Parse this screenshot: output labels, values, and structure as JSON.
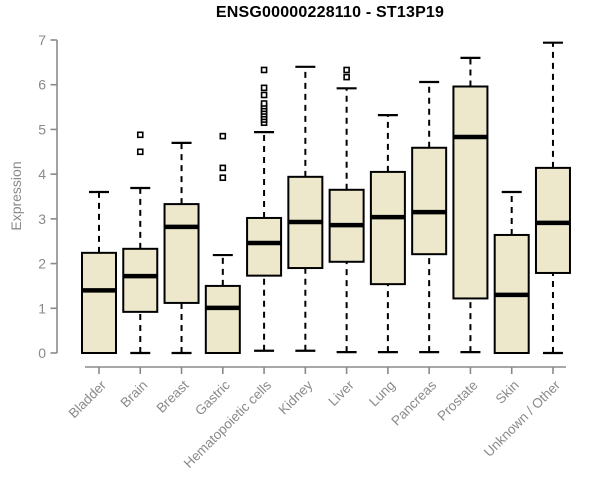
{
  "colors": {
    "box_fill": "#ede8cc",
    "box_stroke": "#000000",
    "median_color": "#000000",
    "axis_color": "#8a8a8a",
    "title_color": "#000000",
    "background": "#ffffff"
  },
  "chart_data": {
    "type": "boxplot",
    "title": "ENSG00000228110 - ST13P19",
    "xlabel": "",
    "ylabel": "Expression",
    "ylim": [
      0,
      7
    ],
    "yticks": [
      0,
      1,
      2,
      3,
      4,
      5,
      6,
      7
    ],
    "grid": "off",
    "legend": "none",
    "categories": [
      "Bladder",
      "Brain",
      "Breast",
      "Gastric",
      "Hematopoietic cells",
      "Kidney",
      "Liver",
      "Lung",
      "Pancreas",
      "Prostate",
      "Skin",
      "Unknown / Other"
    ],
    "series": [
      {
        "name": "Bladder",
        "min": 0,
        "q1": 0,
        "median": 1.4,
        "q3": 2.24,
        "max": 3.6,
        "outliers": []
      },
      {
        "name": "Brain",
        "min": 0,
        "q1": 0.92,
        "median": 1.72,
        "q3": 2.33,
        "max": 3.69,
        "outliers": [
          4.5,
          4.88
        ]
      },
      {
        "name": "Breast",
        "min": 0,
        "q1": 1.12,
        "median": 2.82,
        "q3": 3.33,
        "max": 4.7,
        "outliers": []
      },
      {
        "name": "Gastric",
        "min": 0,
        "q1": 0,
        "median": 1.01,
        "q3": 1.5,
        "max": 2.19,
        "outliers": [
          3.92,
          4.14,
          4.85
        ]
      },
      {
        "name": "Hematopoietic cells",
        "min": 0.05,
        "q1": 1.73,
        "median": 2.46,
        "q3": 3.02,
        "max": 4.94,
        "outliers": [
          5.15,
          5.22,
          5.28,
          5.34,
          5.4,
          5.46,
          5.52,
          5.58,
          5.77,
          5.93,
          6.33
        ]
      },
      {
        "name": "Kidney",
        "min": 0.05,
        "q1": 1.9,
        "median": 2.93,
        "q3": 3.94,
        "max": 6.4,
        "outliers": []
      },
      {
        "name": "Liver",
        "min": 0.02,
        "q1": 2.04,
        "median": 2.86,
        "q3": 3.65,
        "max": 5.92,
        "outliers": [
          6.17,
          6.33
        ]
      },
      {
        "name": "Lung",
        "min": 0.02,
        "q1": 1.54,
        "median": 3.04,
        "q3": 4.05,
        "max": 5.32,
        "outliers": []
      },
      {
        "name": "Pancreas",
        "min": 0.02,
        "q1": 2.21,
        "median": 3.15,
        "q3": 4.59,
        "max": 6.06,
        "outliers": []
      },
      {
        "name": "Prostate",
        "min": 0.02,
        "q1": 1.22,
        "median": 4.83,
        "q3": 5.96,
        "max": 6.6,
        "outliers": []
      },
      {
        "name": "Skin",
        "min": 0,
        "q1": 0,
        "median": 1.3,
        "q3": 2.64,
        "max": 3.6,
        "outliers": []
      },
      {
        "name": "Unknown / Other",
        "min": 0,
        "q1": 1.79,
        "median": 2.91,
        "q3": 4.14,
        "max": 6.94,
        "outliers": []
      }
    ]
  }
}
